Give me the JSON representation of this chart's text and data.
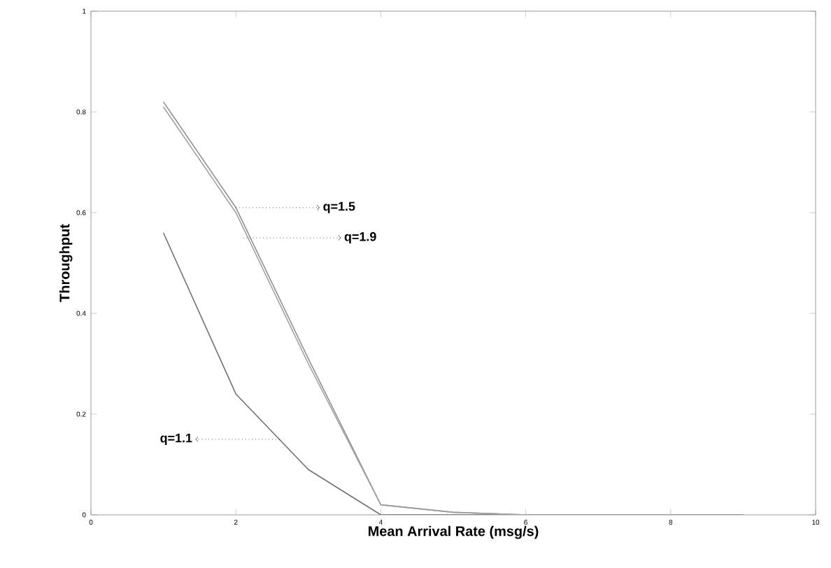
{
  "chart_data": {
    "type": "line",
    "xlabel": "Mean Arrival Rate (msg/s)",
    "ylabel": "Throughput",
    "x": [
      1,
      2,
      3,
      4,
      5,
      6,
      7,
      8,
      9
    ],
    "series": [
      {
        "color": "#707070",
        "values": [
          0.56,
          0.24,
          0.09,
          0.0,
          0.0,
          0.0,
          0.0,
          0.0,
          0.0
        ]
      },
      {
        "color": "#909090",
        "values": [
          0.82,
          0.61,
          0.31,
          0.02,
          0.005,
          0.0,
          0.0,
          0.0,
          0.0
        ]
      },
      {
        "color": "#a0a0a0",
        "values": [
          0.81,
          0.6,
          0.3,
          0.02,
          0.005,
          0.0,
          0.0,
          0.0,
          0.0
        ]
      }
    ],
    "xlim": [
      0,
      10
    ],
    "ylim": [
      0,
      1
    ],
    "xticks": [
      0,
      2,
      4,
      6,
      8,
      10
    ],
    "yticks": [
      0,
      0.2,
      0.4,
      0.6,
      0.8,
      1
    ],
    "marker": "none",
    "line_style": "solid",
    "annotations": [
      {
        "text": "q=1.5",
        "x": 2.0,
        "y": 0.61
      },
      {
        "text": "q=1.9",
        "x": 2.1,
        "y": 0.55
      },
      {
        "text": "q=1.1",
        "x": 2.6,
        "y": 0.15
      }
    ]
  }
}
